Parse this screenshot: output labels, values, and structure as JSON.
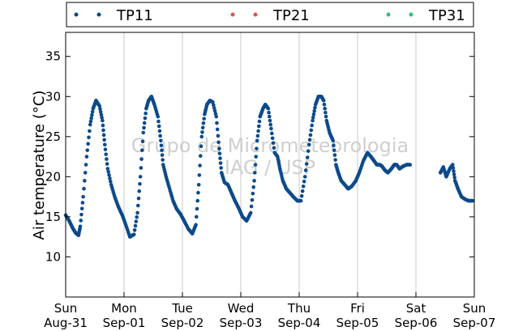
{
  "chart_data": {
    "type": "scatter",
    "ylabel": "Air temperature (°C)",
    "xlabel": "",
    "watermark": [
      "Grupo de Micrometeorologia",
      "IAG / USP"
    ],
    "ylim": [
      5,
      38
    ],
    "xlim": [
      0,
      7
    ],
    "yticks": [
      10,
      15,
      20,
      25,
      30,
      35
    ],
    "grid": "vertical",
    "legend_position": "top",
    "x_ticks": [
      {
        "pos": 0,
        "day": "Sun",
        "date": "Aug-31"
      },
      {
        "pos": 1,
        "day": "Mon",
        "date": "Sep-01"
      },
      {
        "pos": 2,
        "day": "Tue",
        "date": "Sep-02"
      },
      {
        "pos": 3,
        "day": "Wed",
        "date": "Sep-03"
      },
      {
        "pos": 4,
        "day": "Thu",
        "date": "Sep-04"
      },
      {
        "pos": 5,
        "day": "Fri",
        "date": "Sep-05"
      },
      {
        "pos": 6,
        "day": "Sat",
        "date": "Sep-06"
      },
      {
        "pos": 7,
        "day": "Sun",
        "date": "Sep-07"
      }
    ],
    "series": [
      {
        "name": "TP11",
        "color": "#0c4a8a",
        "x": [
          0.0,
          0.06,
          0.12,
          0.17,
          0.22,
          0.25,
          0.3,
          0.36,
          0.42,
          0.47,
          0.52,
          0.58,
          0.63,
          0.67,
          0.72,
          0.78,
          0.84,
          0.9,
          0.97,
          1.03,
          1.1,
          1.17,
          1.23,
          1.28,
          1.33,
          1.38,
          1.42,
          1.47,
          1.52,
          1.58,
          1.63,
          1.67,
          1.72,
          1.78,
          1.84,
          1.9,
          1.97,
          2.03,
          2.1,
          2.17,
          2.23,
          2.28,
          2.33,
          2.38,
          2.42,
          2.47,
          2.52,
          2.58,
          2.63,
          2.67,
          2.72,
          2.78,
          2.84,
          2.9,
          2.97,
          3.03,
          3.1,
          3.17,
          3.23,
          3.28,
          3.33,
          3.38,
          3.42,
          3.47,
          3.52,
          3.58,
          3.63,
          3.67,
          3.72,
          3.78,
          3.84,
          3.9,
          3.97,
          4.03,
          4.1,
          4.17,
          4.23,
          4.28,
          4.33,
          4.38,
          4.42,
          4.47,
          4.52,
          4.58,
          4.63,
          4.67,
          4.72,
          4.78,
          4.84,
          4.9,
          4.97,
          5.03,
          5.1,
          5.17,
          5.23,
          5.28,
          5.33,
          5.38,
          5.42,
          5.47,
          5.52,
          5.58,
          5.63,
          5.67,
          5.72,
          5.78,
          5.84,
          5.9,
          6.42,
          6.47,
          6.52,
          6.58,
          6.63,
          6.67,
          6.72,
          6.78,
          6.84,
          6.9,
          6.97
        ],
        "y": [
          15.2,
          14.5,
          13.6,
          13.0,
          12.7,
          13.8,
          17.5,
          22.5,
          26.5,
          28.5,
          29.5,
          28.8,
          27.0,
          24.0,
          21.0,
          19.0,
          17.5,
          16.3,
          15.2,
          14.0,
          12.5,
          12.8,
          15.5,
          20.0,
          25.5,
          28.5,
          29.5,
          30.0,
          29.0,
          27.5,
          24.5,
          21.5,
          20.0,
          18.5,
          17.0,
          16.0,
          15.3,
          14.5,
          13.5,
          12.9,
          14.0,
          19.0,
          25.0,
          27.8,
          29.0,
          29.5,
          29.3,
          27.5,
          23.5,
          20.5,
          19.3,
          19.0,
          18.0,
          17.0,
          16.0,
          15.0,
          14.5,
          15.5,
          19.5,
          24.5,
          27.5,
          28.5,
          29.0,
          28.5,
          26.0,
          23.0,
          22.5,
          21.0,
          19.5,
          18.5,
          18.0,
          17.5,
          17.0,
          17.0,
          20.0,
          24.0,
          27.0,
          29.0,
          30.0,
          30.0,
          29.5,
          27.0,
          25.5,
          24.5,
          21.5,
          20.5,
          19.5,
          19.0,
          18.5,
          18.8,
          19.5,
          20.5,
          22.0,
          23.0,
          22.5,
          22.0,
          21.5,
          21.5,
          21.3,
          20.8,
          20.5,
          21.0,
          21.5,
          21.5,
          21.0,
          21.3,
          21.5,
          21.5,
          20.5,
          21.2,
          20.0,
          21.0,
          21.5,
          19.5,
          18.5,
          17.5,
          17.2,
          17.0,
          17.0
        ]
      },
      {
        "name": "TP21",
        "color": "#d9534f",
        "x": [],
        "y": []
      },
      {
        "name": "TP31",
        "color": "#2ebd7a",
        "x": [],
        "y": []
      }
    ]
  }
}
